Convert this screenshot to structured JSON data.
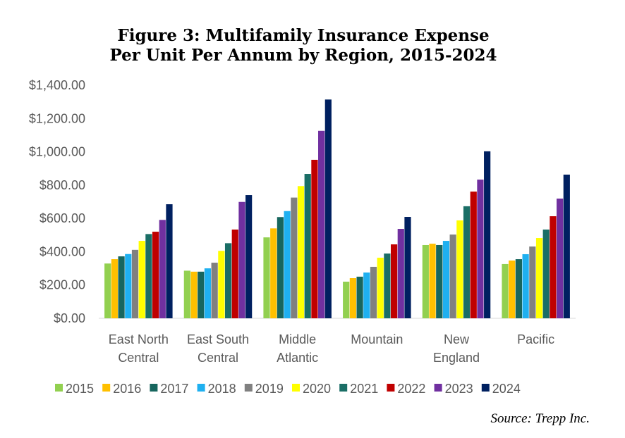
{
  "chart_data": {
    "type": "bar",
    "title": [
      "Figure 3: Multifamily Insurance Expense",
      "Per Unit Per Annum by Region, 2015-2024"
    ],
    "xlabel": "",
    "ylabel": "",
    "ylim": [
      0,
      1400
    ],
    "yticks": [
      "$0.00",
      "$200.00",
      "$400.00",
      "$600.00",
      "$800.00",
      "$1,000.00",
      "$1,200.00",
      "$1,400.00"
    ],
    "ytick_values": [
      0,
      200,
      400,
      600,
      800,
      1000,
      1200,
      1400
    ],
    "grid": false,
    "legend_position": "bottom",
    "categories": [
      [
        "East North",
        "Central"
      ],
      [
        "East South",
        "Central"
      ],
      [
        "Middle",
        "Atlantic"
      ],
      [
        "Mountain"
      ],
      [
        "New",
        "England"
      ],
      [
        "Pacific"
      ]
    ],
    "series": [
      {
        "name": "2015",
        "color": "#92d050",
        "values": [
          329,
          286,
          486,
          220,
          440,
          326
        ]
      },
      {
        "name": "2016",
        "color": "#ffc000",
        "values": [
          355,
          280,
          540,
          241,
          448,
          347
        ]
      },
      {
        "name": "2017",
        "color": "#17665e",
        "values": [
          372,
          280,
          608,
          250,
          440,
          355
        ]
      },
      {
        "name": "2018",
        "color": "#1fb0f0",
        "values": [
          386,
          300,
          644,
          275,
          465,
          385
        ]
      },
      {
        "name": "2019",
        "color": "#808080",
        "values": [
          411,
          334,
          725,
          309,
          503,
          431
        ]
      },
      {
        "name": "2020",
        "color": "#ffff00",
        "values": [
          465,
          405,
          794,
          364,
          588,
          482
        ]
      },
      {
        "name": "2021",
        "color": "#1a6e66",
        "values": [
          506,
          451,
          867,
          389,
          673,
          533
        ]
      },
      {
        "name": "2022",
        "color": "#c00000",
        "values": [
          520,
          533,
          952,
          444,
          761,
          613
        ]
      },
      {
        "name": "2023",
        "color": "#7030a0",
        "values": [
          591,
          699,
          1126,
          537,
          833,
          719
        ]
      },
      {
        "name": "2024",
        "color": "#002060",
        "values": [
          685,
          740,
          1314,
          609,
          1003,
          863
        ]
      }
    ],
    "source": "Source: Trepp Inc."
  }
}
